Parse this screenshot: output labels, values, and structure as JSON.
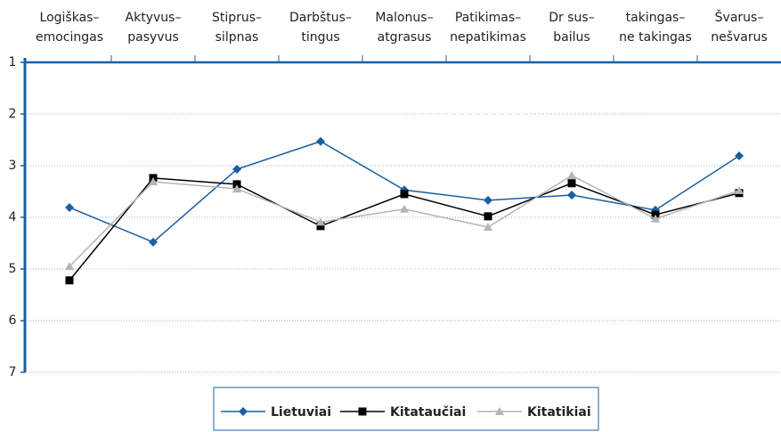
{
  "chart_data": {
    "type": "line",
    "categories": [
      [
        "Logiškas–",
        "emocingas"
      ],
      [
        "Aktyvus–",
        "pasyvus"
      ],
      [
        "Stiprus–",
        "silpnas"
      ],
      [
        "Darbštus–",
        "tingus"
      ],
      [
        "Malonus–",
        "atgrasus"
      ],
      [
        "Patikimas–",
        "nepatikimas"
      ],
      [
        "Dr sus–",
        "bailus"
      ],
      [
        "takingas–",
        "ne takingas"
      ],
      [
        "Švarus–",
        "nešvarus"
      ]
    ],
    "series": [
      {
        "name": "Lietuviai",
        "color": "#1a5fa0",
        "marker": "diamond",
        "values": [
          3.81,
          4.48,
          3.07,
          2.53,
          3.47,
          3.67,
          3.57,
          3.86,
          2.81
        ]
      },
      {
        "name": "Kitataučiai",
        "color": "#000000",
        "marker": "square",
        "values": [
          5.22,
          3.24,
          3.36,
          4.17,
          3.55,
          3.98,
          3.34,
          3.95,
          3.53
        ]
      },
      {
        "name": "Kitatikiai",
        "color": "#b4b4b4",
        "marker": "triangle",
        "values": [
          4.95,
          3.31,
          3.45,
          4.09,
          3.84,
          4.19,
          3.19,
          4.03,
          3.48
        ]
      }
    ],
    "ylim": [
      1,
      7
    ],
    "yticks": [
      1,
      2,
      3,
      4,
      5,
      6,
      7
    ],
    "yreverse": true,
    "grid": true,
    "legend": "bottom"
  }
}
